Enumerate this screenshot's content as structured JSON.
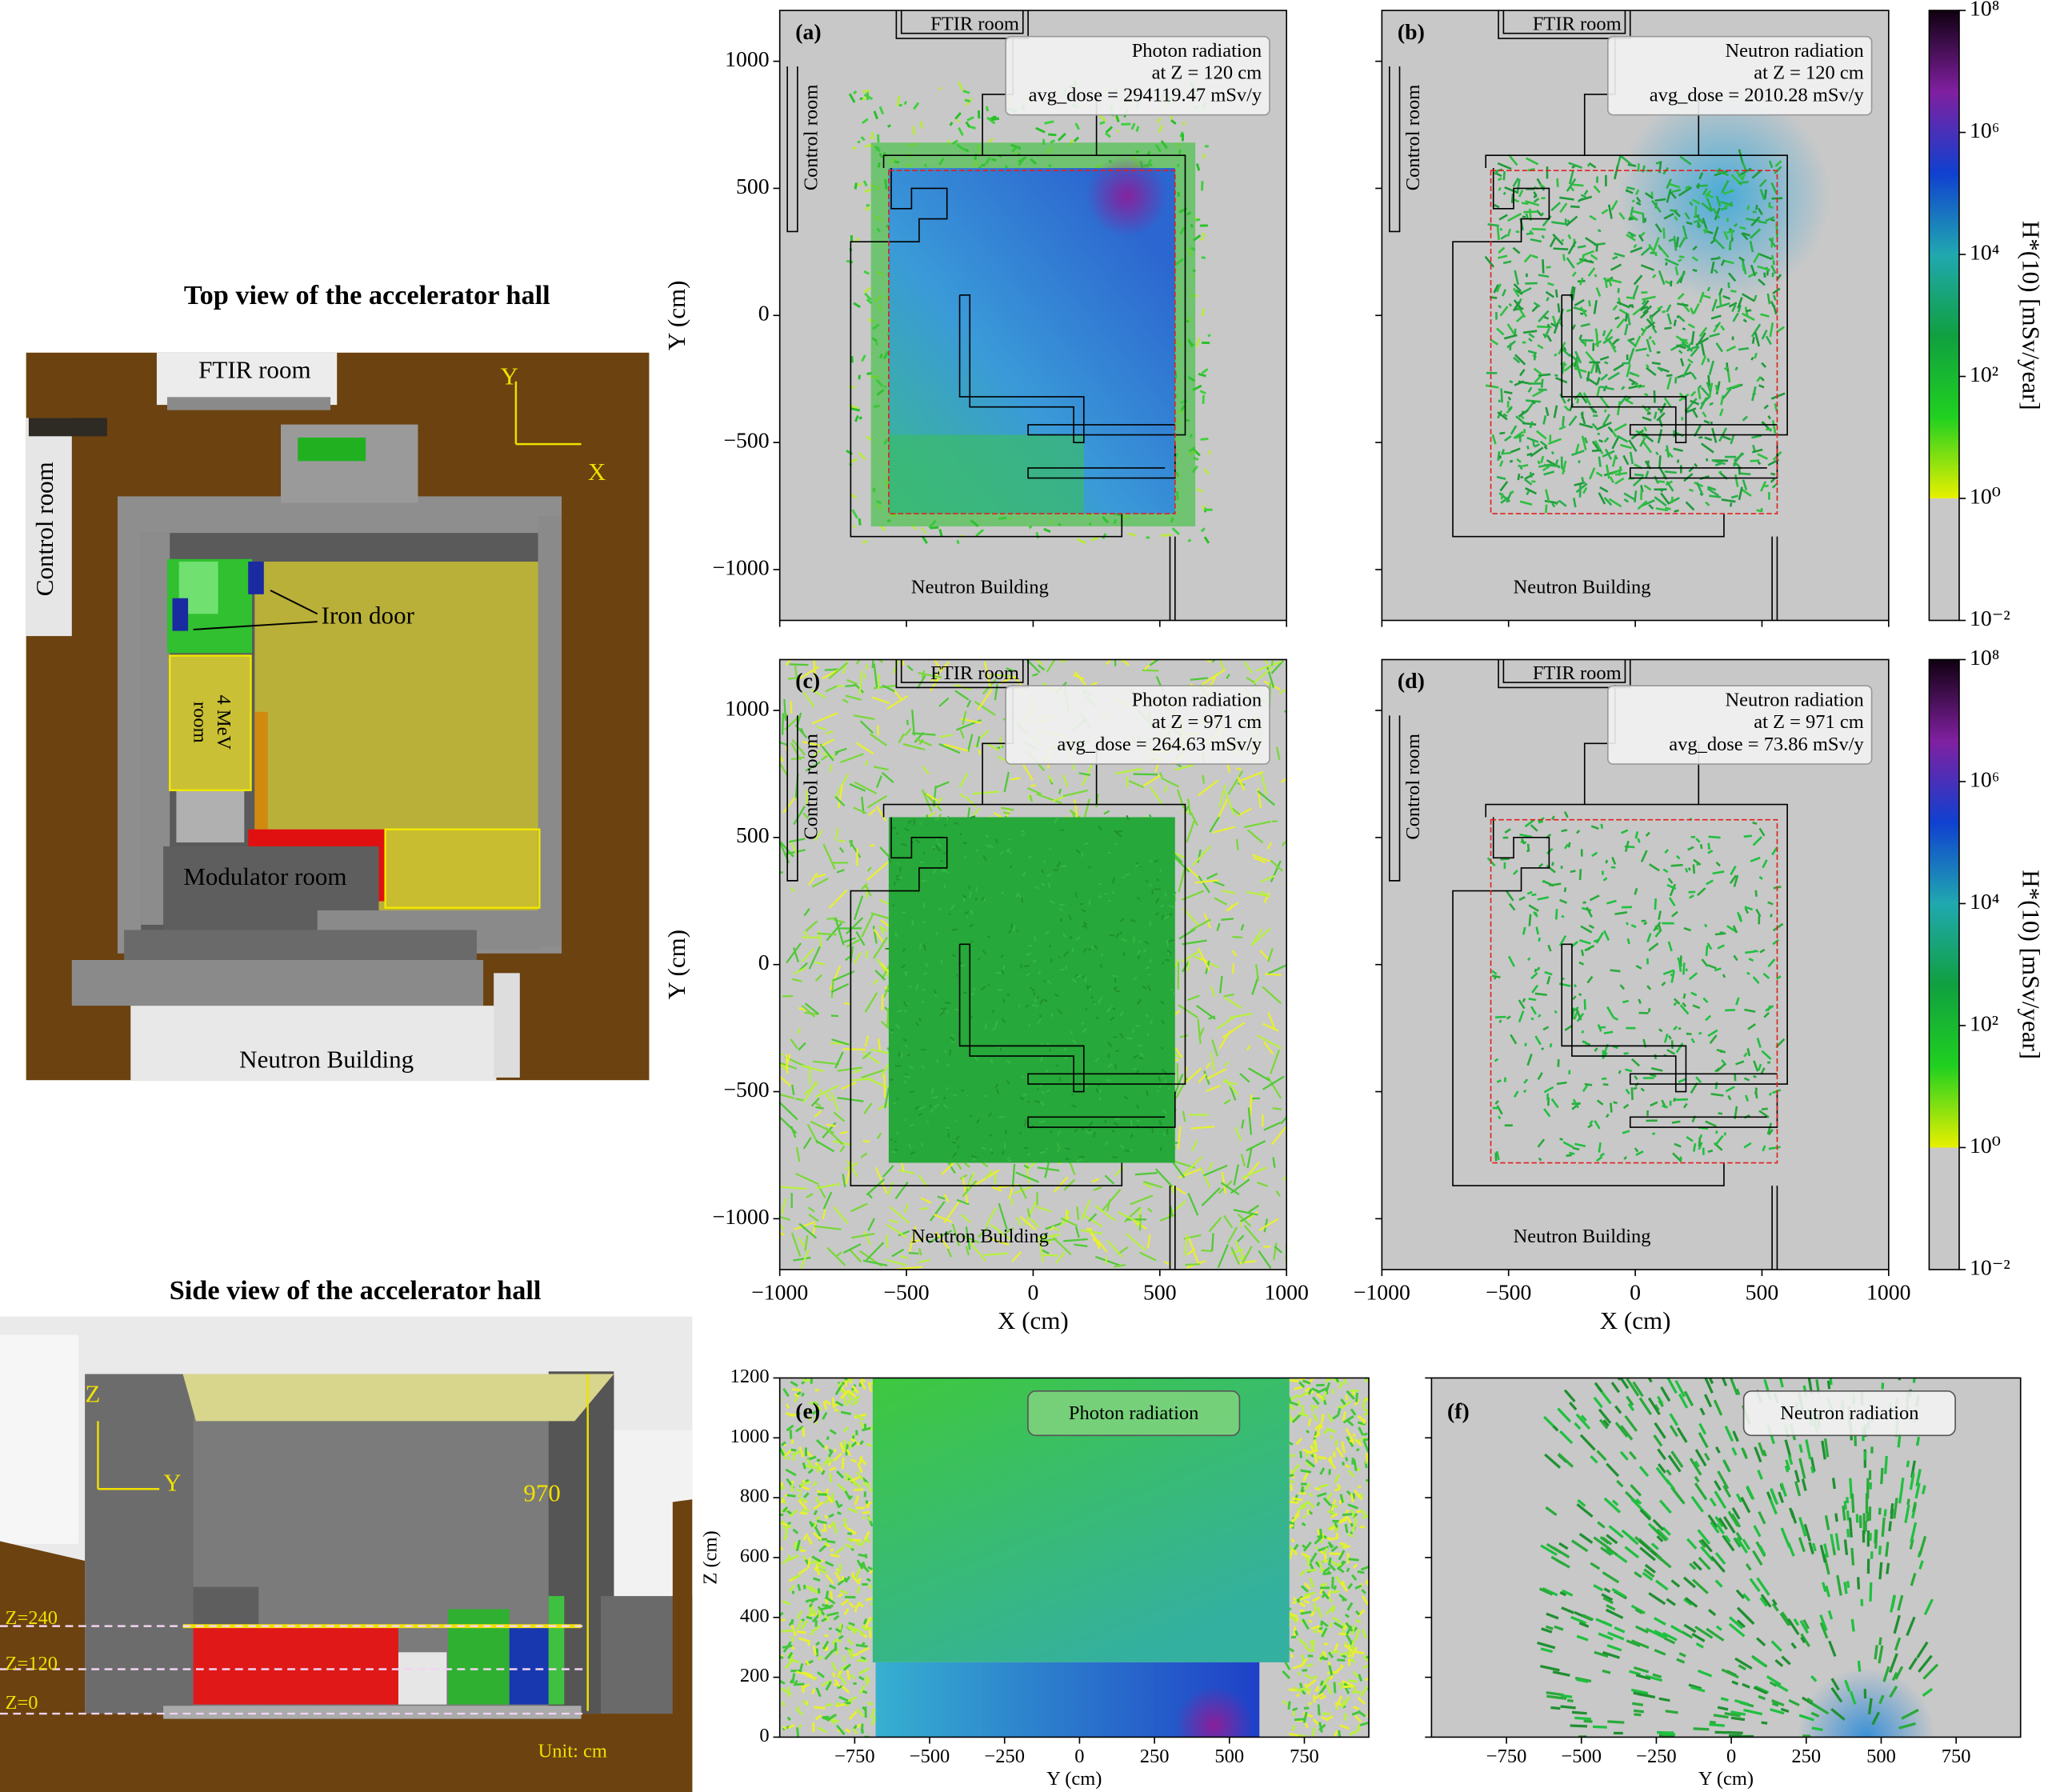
{
  "top_view": {
    "title": "Top view of the accelerator hall",
    "ftir": "FTIR room",
    "control": "Control room",
    "axis_y": "Y",
    "axis_x": "X",
    "iron_door": "Iron door",
    "mev_room": [
      "4 MeV",
      "room"
    ],
    "modulator": "Modulator room",
    "neutron": "Neutron Building"
  },
  "side_view": {
    "title": "Side view of the accelerator hall",
    "axis_z": "Z",
    "axis_y": "Y",
    "height": "970",
    "levels": [
      "Z=240",
      "Z=120",
      "Z=0"
    ],
    "unit": "Unit: cm"
  },
  "colorbar": {
    "label": "H*(10) [mSv/year]",
    "lim": [
      0.01,
      100000000
    ],
    "log": true,
    "ticks": [
      {
        "value": 0.01,
        "label": "10⁻²"
      },
      {
        "value": 1,
        "label": "10⁰"
      },
      {
        "value": 100,
        "label": "10²"
      },
      {
        "value": 10000,
        "label": "10⁴"
      },
      {
        "value": 1000000,
        "label": "10⁶"
      },
      {
        "value": 100000000,
        "label": "10⁸"
      }
    ],
    "under_color": "#c8c8c8",
    "colors": [
      "#e8f000",
      "#20d020",
      "#10a040",
      "#20a8b0",
      "#1040d0",
      "#8020a0",
      "#100010"
    ]
  },
  "panels": [
    {
      "tag": "(a)",
      "legend": [
        "Photon radiation",
        "at Z = 120 cm",
        "avg_dose = 294119.47 mSv/y"
      ],
      "rooms": {
        "ftir": "FTIR room",
        "control": "Control room",
        "neutron": "Neutron Building"
      },
      "xlim": [
        -1000,
        1000
      ],
      "ylim": [
        -1200,
        1200
      ],
      "xticks": [
        {
          "value": -1000,
          "label": "−1000"
        },
        {
          "value": -500,
          "label": "−500"
        },
        0,
        500,
        1000
      ],
      "yticks": [
        {
          "value": -1000,
          "label": "−1000"
        },
        {
          "value": -500,
          "label": "−500"
        },
        0,
        500,
        1000
      ],
      "xtick_labels": false,
      "ytick_labels": true,
      "ylabel": "Y (cm)"
    },
    {
      "tag": "(b)",
      "legend": [
        "Neutron radiation",
        "at Z = 120 cm",
        "avg_dose = 2010.28 mSv/y"
      ],
      "rooms": {
        "ftir": "FTIR room",
        "control": "Control room",
        "neutron": "Neutron Building"
      },
      "xlim": [
        -1000,
        1000
      ],
      "ylim": [
        -1200,
        1200
      ],
      "xticks": [
        {
          "value": -1000,
          "label": "−1000"
        },
        {
          "value": -500,
          "label": "−500"
        },
        0,
        500,
        1000
      ],
      "yticks": [
        {
          "value": -1000,
          "label": "−1000"
        },
        {
          "value": -500,
          "label": "−500"
        },
        0,
        500,
        1000
      ],
      "xtick_labels": false,
      "ytick_labels": false
    },
    {
      "tag": "(c)",
      "legend": [
        "Photon radiation",
        "at Z = 971 cm",
        "avg_dose = 264.63 mSv/y"
      ],
      "rooms": {
        "ftir": "FTIR room",
        "control": "Control room",
        "neutron": "Neutron Building"
      },
      "xlim": [
        -1000,
        1000
      ],
      "ylim": [
        -1200,
        1200
      ],
      "xticks": [
        {
          "value": -1000,
          "label": "−1000"
        },
        {
          "value": -500,
          "label": "−500"
        },
        0,
        500,
        1000
      ],
      "yticks": [
        {
          "value": -1000,
          "label": "−1000"
        },
        {
          "value": -500,
          "label": "−500"
        },
        0,
        500,
        1000
      ],
      "xtick_labels": true,
      "ytick_labels": true,
      "xlabel": "X (cm)",
      "ylabel": "Y (cm)"
    },
    {
      "tag": "(d)",
      "legend": [
        "Neutron radiation",
        "at Z = 971 cm",
        "avg_dose = 73.86 mSv/y"
      ],
      "rooms": {
        "ftir": "FTIR room",
        "control": "Control room",
        "neutron": "Neutron Building"
      },
      "xlim": [
        -1000,
        1000
      ],
      "ylim": [
        -1200,
        1200
      ],
      "xticks": [
        {
          "value": -1000,
          "label": "−1000"
        },
        {
          "value": -500,
          "label": "−500"
        },
        0,
        500,
        1000
      ],
      "yticks": [
        {
          "value": -1000,
          "label": "−1000"
        },
        {
          "value": -500,
          "label": "−500"
        },
        0,
        500,
        1000
      ],
      "xtick_labels": true,
      "ytick_labels": false,
      "xlabel": "X (cm)"
    },
    {
      "tag": "(e)",
      "legend": [
        "Photon radiation"
      ],
      "xlim": [
        -1000,
        965
      ],
      "ylim": [
        0,
        1200
      ],
      "xticks": [
        {
          "value": -750,
          "label": "−750"
        },
        {
          "value": -500,
          "label": "−500"
        },
        {
          "value": -250,
          "label": "−250"
        },
        0,
        250,
        500,
        750
      ],
      "yticks": [
        0,
        200,
        400,
        600,
        800,
        1000,
        1200
      ],
      "xtick_labels": true,
      "ytick_labels": true,
      "xlabel": "Y (cm)",
      "ylabel": "Z (cm)"
    },
    {
      "tag": "(f)",
      "legend": [
        "Neutron radiation"
      ],
      "xlim": [
        -1000,
        965
      ],
      "ylim": [
        0,
        1200
      ],
      "xticks": [
        {
          "value": -750,
          "label": "−750"
        },
        {
          "value": -500,
          "label": "−500"
        },
        {
          "value": -250,
          "label": "−250"
        },
        0,
        250,
        500,
        750
      ],
      "yticks": [
        0,
        200,
        400,
        600,
        800,
        1000,
        1200
      ],
      "xtick_labels": true,
      "ytick_labels": false,
      "xlabel": "Y (cm)"
    }
  ]
}
